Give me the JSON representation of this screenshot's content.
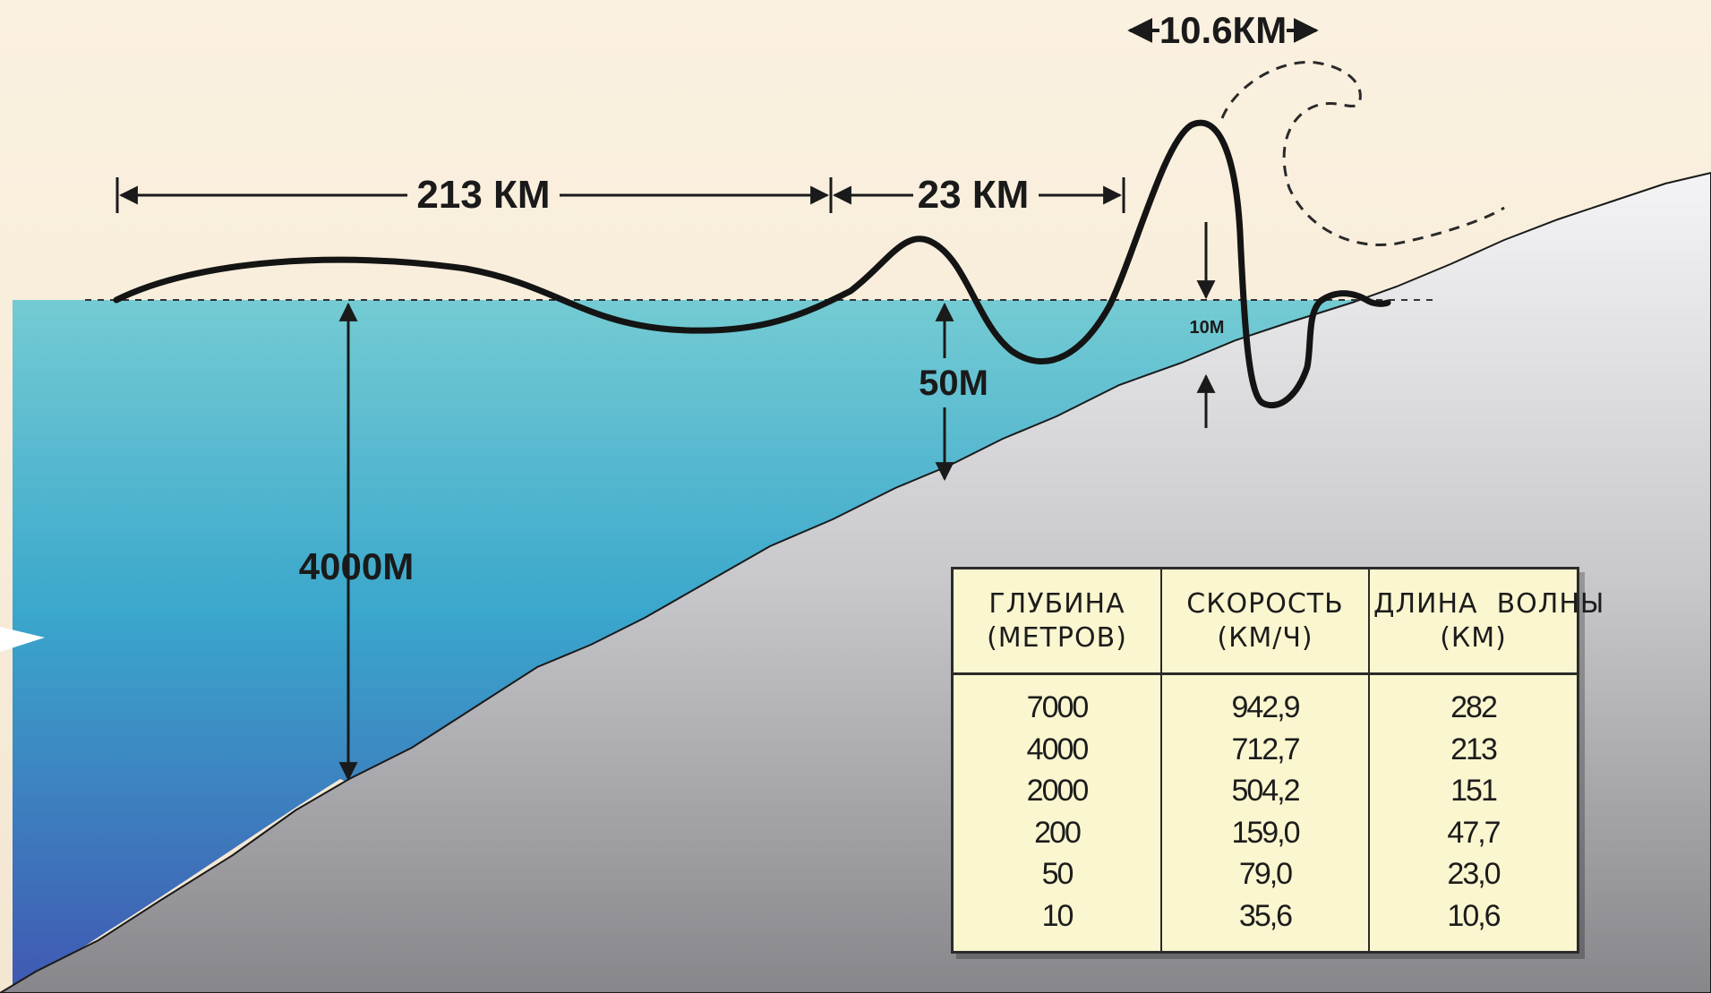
{
  "labels": {
    "wavelength_213": "213 КМ",
    "wavelength_23": "23 КМ",
    "wavelength_10_6": "10.6КМ",
    "depth_4000": "4000М",
    "depth_50": "50М",
    "depth_10": "10М"
  },
  "table": {
    "headers": [
      [
        "ГЛУБИНА",
        "(МЕТРОВ)"
      ],
      [
        "СКОРОСТЬ",
        "(КМ/Ч)"
      ],
      [
        "ДЛИНА  ВОЛНЫ",
        "(КМ)"
      ]
    ],
    "rows": [
      [
        "7000",
        "942,9",
        "282"
      ],
      [
        "4000",
        "712,7",
        "213"
      ],
      [
        "2000",
        "504,2",
        "151"
      ],
      [
        "200",
        "159,0",
        "47,7"
      ],
      [
        "50",
        "79,0",
        "23,0"
      ],
      [
        "10",
        "35,6",
        "10,6"
      ]
    ]
  },
  "colors": {
    "sky": "#f7ecd9",
    "water_top": "#6ec8d2",
    "water_bottom": "#3d5fb2",
    "seabed_top": "#eeeef0",
    "seabed_bottom": "#8d8d92",
    "table_bg": "#faf6cf",
    "line": "#1a1a1a"
  }
}
